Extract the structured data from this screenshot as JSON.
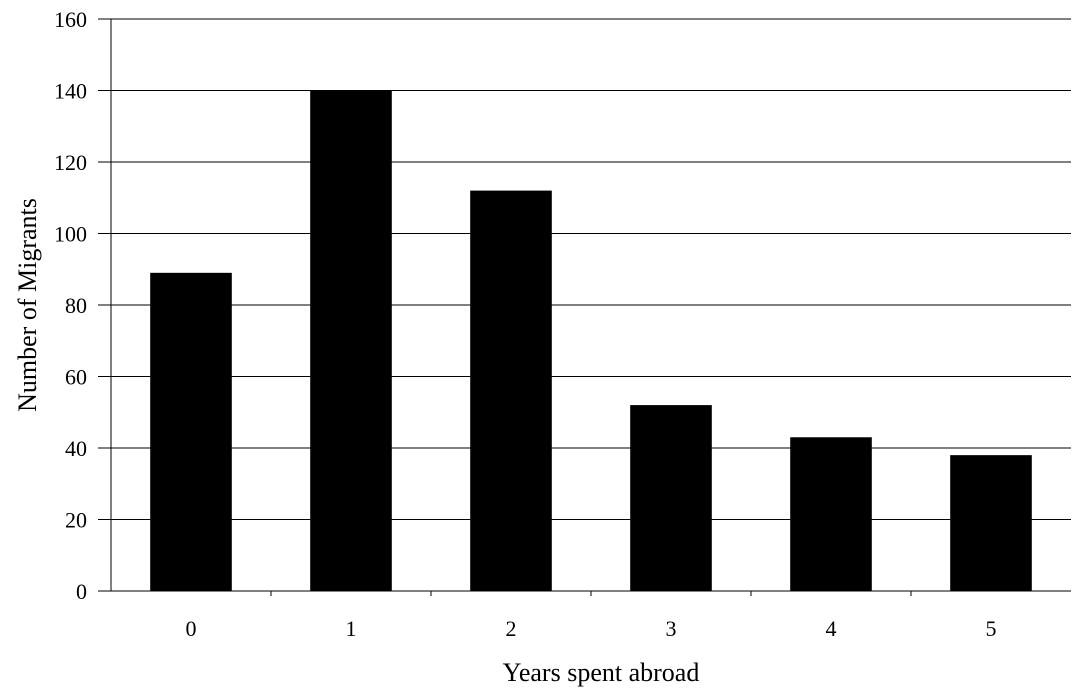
{
  "chart_data": {
    "type": "bar",
    "title": "",
    "xlabel": "Years spent abroad",
    "ylabel": "Number of Migrants",
    "categories": [
      "0",
      "1",
      "2",
      "3",
      "4",
      "5"
    ],
    "values": [
      89,
      140,
      112,
      52,
      43,
      38
    ],
    "ylim": [
      0,
      160
    ],
    "yticks": [
      0,
      20,
      40,
      60,
      80,
      100,
      120,
      140,
      160
    ],
    "grid": true,
    "legend": "none",
    "bar_color": "#000000",
    "grid_color": "#000000"
  }
}
